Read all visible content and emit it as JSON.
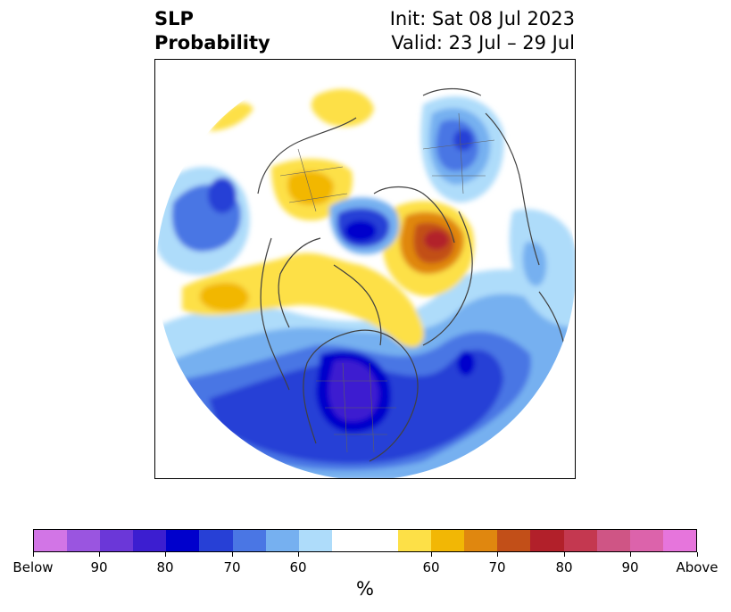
{
  "header": {
    "title_line1": "SLP",
    "title_line2": "Probability",
    "init": "Init: Sat 08 Jul 2023",
    "valid": "Valid: 23 Jul – 29 Jul"
  },
  "colorbar": {
    "colors": [
      "#d275e6",
      "#9a55e0",
      "#6b37d8",
      "#3c1ed0",
      "#0000cc",
      "#2740d6",
      "#4a76e4",
      "#76b0f0",
      "#aedcfa",
      "#ffffff",
      "#ffffff",
      "#fde047",
      "#f2b705",
      "#e0870f",
      "#c24f18",
      "#b2202a",
      "#c43850",
      "#cf5585",
      "#dc63ab",
      "#e675dc"
    ],
    "ticks": [
      "Below",
      "90",
      "80",
      "70",
      "60",
      "60",
      "70",
      "80",
      "90",
      "Above"
    ],
    "unit": "%"
  },
  "map": {
    "projection": "north-polar-stereographic",
    "blue_shades": [
      "#aedcfa",
      "#76b0f0",
      "#4a76e4",
      "#2740d6",
      "#0000cc",
      "#3c1ed0"
    ],
    "warm_shades": [
      "#fde047",
      "#f2b705",
      "#e0870f",
      "#c24f18",
      "#b2202a"
    ],
    "coastline_color": "#404040"
  }
}
